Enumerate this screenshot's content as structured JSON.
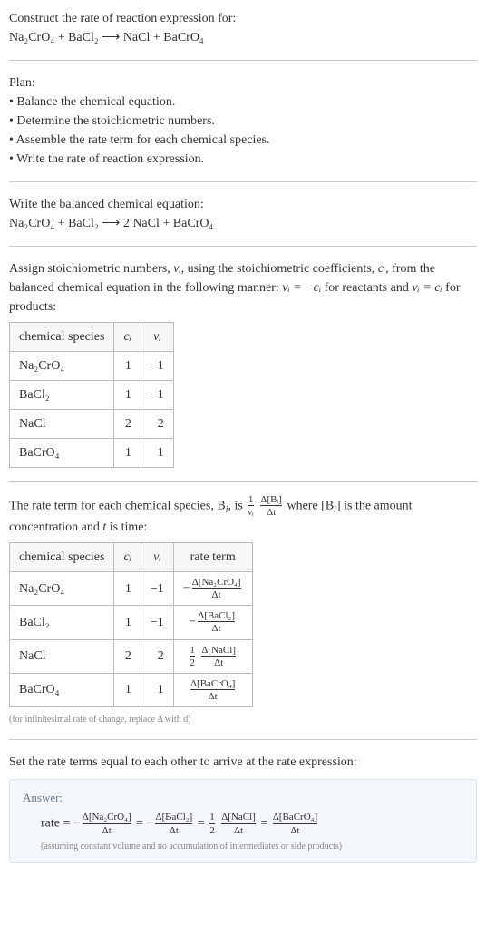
{
  "heading": "Construct the rate of reaction expression for:",
  "equation_unbalanced": "Na₂CrO₄ + BaCl₂  ⟶  NaCl + BaCrO₄",
  "plan_title": "Plan:",
  "plan_items": [
    "• Balance the chemical equation.",
    "• Determine the stoichiometric numbers.",
    "• Assemble the rate term for each chemical species.",
    "• Write the rate of reaction expression."
  ],
  "balanced_intro": "Write the balanced chemical equation:",
  "equation_balanced": "Na₂CrO₄ + BaCl₂  ⟶  2 NaCl + BaCrO₄",
  "assign_text_a": "Assign stoichiometric numbers, ",
  "assign_text_b": ", using the stoichiometric coefficients, ",
  "assign_text_c": ", from the balanced chemical equation in the following manner: ",
  "assign_text_d": " for reactants and ",
  "assign_text_e": " for products:",
  "v_i": "νᵢ",
  "c_i": "cᵢ",
  "ni_neg_ci": "νᵢ = −cᵢ",
  "ni_ci": "νᵢ = cᵢ",
  "table1": {
    "headers": [
      "chemical species",
      "cᵢ",
      "νᵢ"
    ],
    "rows": [
      [
        "Na₂CrO₄",
        "1",
        "−1"
      ],
      [
        "BaCl₂",
        "1",
        "−1"
      ],
      [
        "NaCl",
        "2",
        "2"
      ],
      [
        "BaCrO₄",
        "1",
        "1"
      ]
    ]
  },
  "rateterm_intro_a": "The rate term for each chemical species, B",
  "rateterm_intro_b": ", is ",
  "rateterm_intro_c": " where [B",
  "rateterm_intro_d": "] is the amount concentration and ",
  "rateterm_intro_e": " is time:",
  "i_sub": "i",
  "t_var": "t",
  "one_over_nu_num": "1",
  "one_over_nu_den": "νᵢ",
  "dBi_num": "Δ[Bᵢ]",
  "dBi_den": "Δt",
  "table2": {
    "headers": [
      "chemical species",
      "cᵢ",
      "νᵢ",
      "rate term"
    ],
    "rows": [
      {
        "sp": "Na₂CrO₄",
        "c": "1",
        "v": "−1",
        "neg": "−",
        "num": "Δ[Na₂CrO₄]",
        "den": "Δt",
        "half": ""
      },
      {
        "sp": "BaCl₂",
        "c": "1",
        "v": "−1",
        "neg": "−",
        "num": "Δ[BaCl₂]",
        "den": "Δt",
        "half": ""
      },
      {
        "sp": "NaCl",
        "c": "2",
        "v": "2",
        "neg": "",
        "num": "Δ[NaCl]",
        "den": "Δt",
        "half": "1/2"
      },
      {
        "sp": "BaCrO₄",
        "c": "1",
        "v": "1",
        "neg": "",
        "num": "Δ[BaCrO₄]",
        "den": "Δt",
        "half": ""
      }
    ]
  },
  "infinitesimal_note": "(for infinitesimal rate of change, replace Δ with d)",
  "final_intro": "Set the rate terms equal to each other to arrive at the rate expression:",
  "answer_label": "Answer:",
  "rate_word": "rate = ",
  "neg": "−",
  "eq": " = ",
  "half_num": "1",
  "half_den": "2",
  "terms": {
    "na": {
      "num": "Δ[Na₂CrO₄]",
      "den": "Δt"
    },
    "ba": {
      "num": "Δ[BaCl₂]",
      "den": "Δt"
    },
    "nacl": {
      "num": "Δ[NaCl]",
      "den": "Δt"
    },
    "bacro": {
      "num": "Δ[BaCrO₄]",
      "den": "Δt"
    }
  },
  "assume_note": "(assuming constant volume and no accumulation of intermediates or side products)"
}
